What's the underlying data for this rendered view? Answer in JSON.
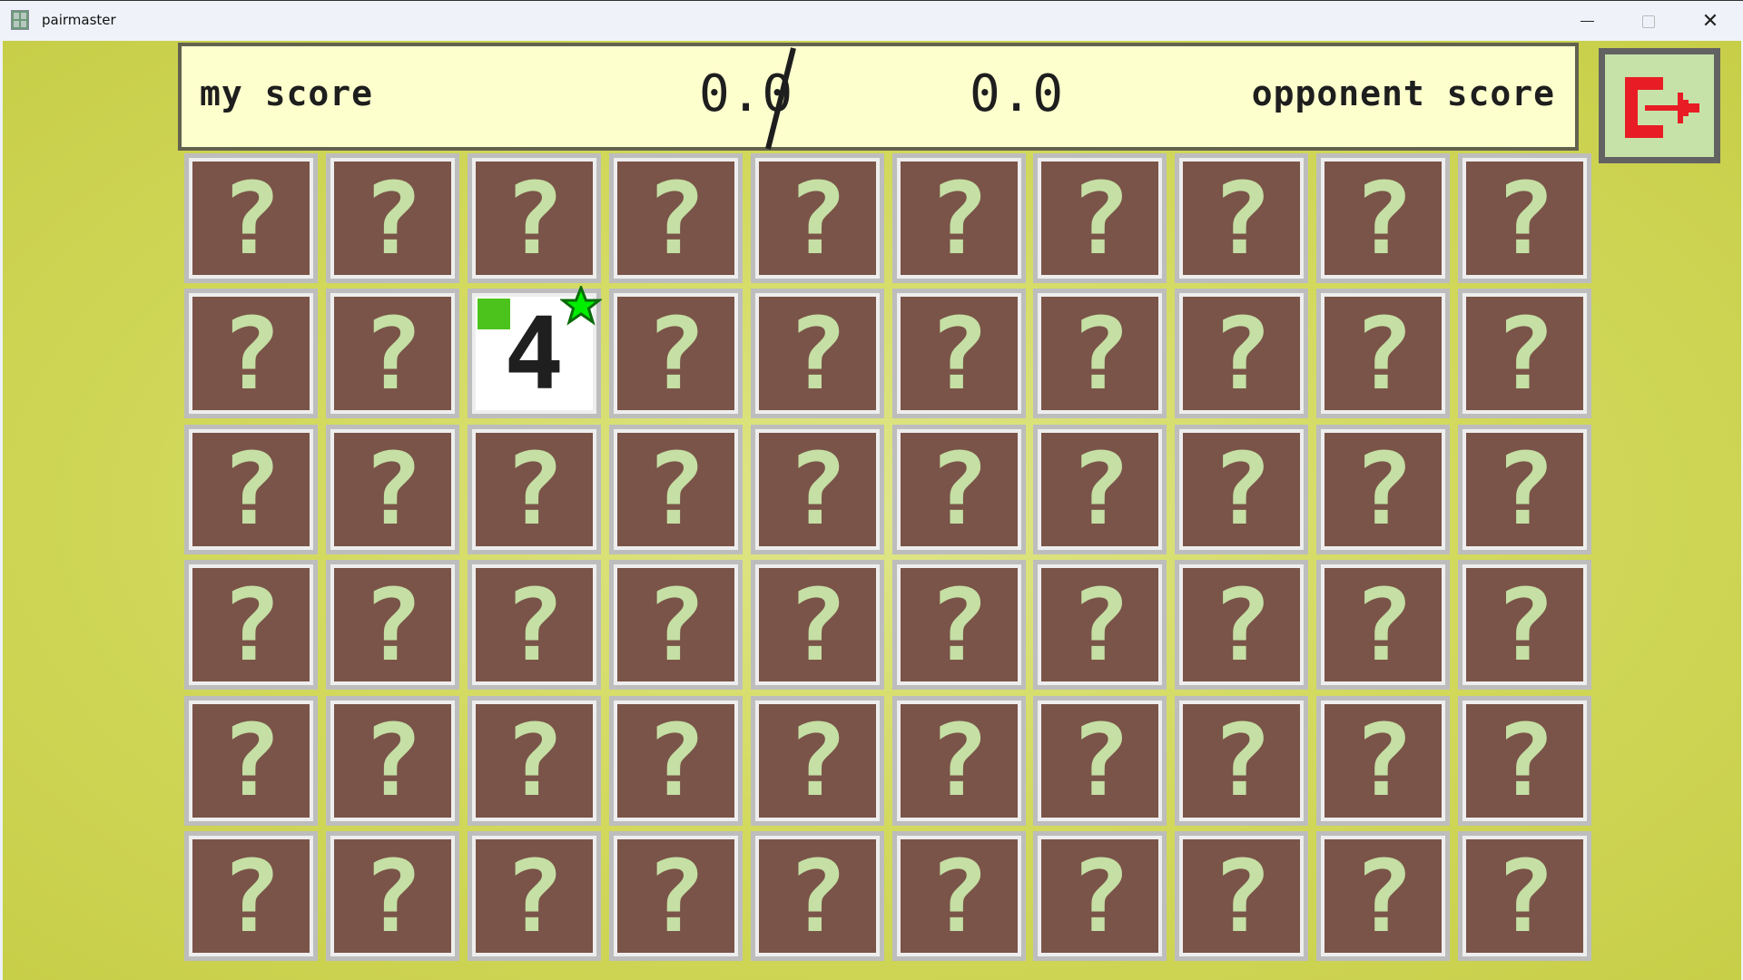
{
  "window": {
    "title": "pairmaster",
    "controls": [
      "minimize",
      "maximize",
      "close"
    ]
  },
  "score": {
    "my_label": "my score",
    "my_value": "0.0",
    "separator": "/",
    "opponent_value": "0.0",
    "opponent_label": "opponent score"
  },
  "exit_button": {
    "icon": "exit-icon",
    "color": "#e81c24"
  },
  "board": {
    "rows": 6,
    "cols": 10,
    "hidden_symbol": "?",
    "colors": {
      "card_back": "#7a5448",
      "question_mark": "#c5dfa5",
      "revealed_face": "#ffffff",
      "player_marker": "#4cc31c",
      "star": "#00ee00"
    },
    "revealed": [
      {
        "row": 2,
        "col": 3,
        "value": "4",
        "player_marker": true,
        "star": true
      }
    ]
  }
}
